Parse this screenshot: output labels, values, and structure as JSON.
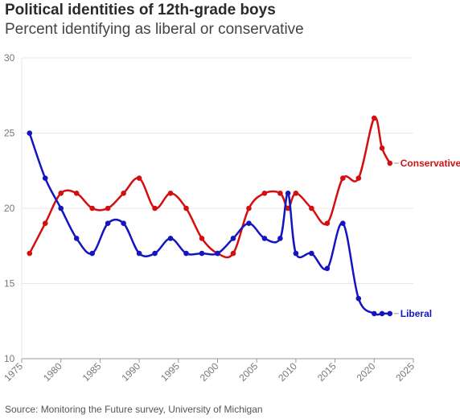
{
  "header": {
    "title": "Political identities of 12th-grade boys",
    "subtitle": "Percent identifying as liberal or conservative"
  },
  "footer": {
    "source": "Source: Monitoring the Future survey, University of Michigan"
  },
  "chart_data": {
    "type": "line",
    "title": "Political identities of 12th-grade boys",
    "subtitle": "Percent identifying as liberal or conservative",
    "xlabel": "",
    "ylabel": "",
    "xlim": [
      1975,
      2025
    ],
    "ylim": [
      10,
      30
    ],
    "x_ticks": [
      1975,
      1980,
      1985,
      1990,
      1995,
      2000,
      2005,
      2010,
      2015,
      2020,
      2025
    ],
    "y_ticks": [
      10,
      15,
      20,
      25,
      30
    ],
    "grid": "horizontal",
    "legend": "direct labels at line ends",
    "series": [
      {
        "name": "Conservative",
        "color": "#d40f0f",
        "points": [
          [
            1976,
            17
          ],
          [
            1978,
            19
          ],
          [
            1980,
            21
          ],
          [
            1982,
            21
          ],
          [
            1984,
            20
          ],
          [
            1986,
            20
          ],
          [
            1988,
            21
          ],
          [
            1990,
            22
          ],
          [
            1992,
            20
          ],
          [
            1994,
            21
          ],
          [
            1996,
            20
          ],
          [
            1998,
            18
          ],
          [
            2000,
            17
          ],
          [
            2002,
            17
          ],
          [
            2004,
            20
          ],
          [
            2006,
            21
          ],
          [
            2008,
            21
          ],
          [
            2009,
            20
          ],
          [
            2010,
            21
          ],
          [
            2012,
            20
          ],
          [
            2014,
            19
          ],
          [
            2016,
            22
          ],
          [
            2018,
            22
          ],
          [
            2020,
            26
          ],
          [
            2021,
            24
          ],
          [
            2022,
            23
          ]
        ]
      },
      {
        "name": "Liberal",
        "color": "#1515c0",
        "points": [
          [
            1976,
            25
          ],
          [
            1978,
            22
          ],
          [
            1980,
            20
          ],
          [
            1982,
            18
          ],
          [
            1984,
            17
          ],
          [
            1986,
            19
          ],
          [
            1988,
            19
          ],
          [
            1990,
            17
          ],
          [
            1992,
            17
          ],
          [
            1994,
            18
          ],
          [
            1996,
            17
          ],
          [
            1998,
            17
          ],
          [
            2000,
            17
          ],
          [
            2002,
            18
          ],
          [
            2004,
            19
          ],
          [
            2006,
            18
          ],
          [
            2008,
            18
          ],
          [
            2009,
            21
          ],
          [
            2010,
            17
          ],
          [
            2012,
            17
          ],
          [
            2014,
            16
          ],
          [
            2016,
            19
          ],
          [
            2018,
            14
          ],
          [
            2020,
            13
          ],
          [
            2021,
            13
          ],
          [
            2022,
            13
          ]
        ]
      }
    ]
  }
}
